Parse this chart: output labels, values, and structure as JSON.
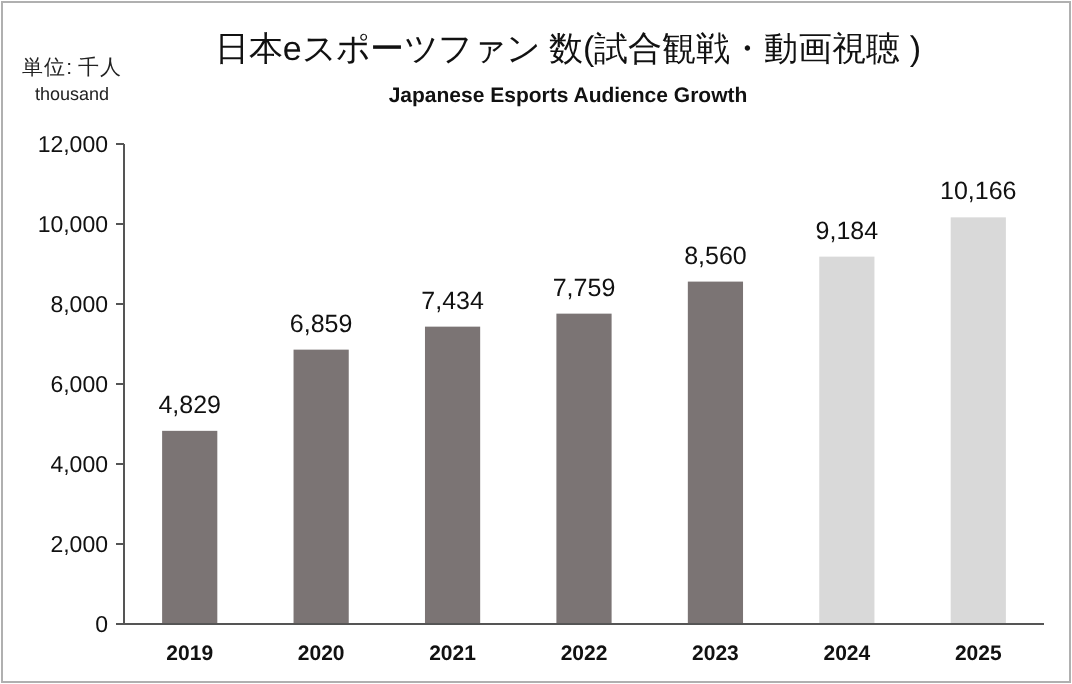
{
  "chart_data": {
    "type": "bar",
    "title": "日本eスポーツファン 数(試合観戦・動画視聴 )",
    "subtitle": "Japanese Esports Audience Growth",
    "ylabel": "単位: 千人",
    "annotations": [
      "thousand"
    ],
    "categories": [
      "2019",
      "2020",
      "2021",
      "2022",
      "2023",
      "2024",
      "2025"
    ],
    "values": [
      4829,
      6859,
      7434,
      7759,
      8560,
      9184,
      10166
    ],
    "colors": [
      "#7b7474",
      "#7b7474",
      "#7b7474",
      "#7b7474",
      "#7b7474",
      "#d9d9d9",
      "#d9d9d9"
    ],
    "ylim": [
      0,
      12000
    ],
    "yticks": [
      {
        "value": 0,
        "label": "0"
      },
      {
        "value": 2000,
        "label": "2,000"
      },
      {
        "value": 4000,
        "label": "4,000"
      },
      {
        "value": 6000,
        "label": "6,000"
      },
      {
        "value": 8000,
        "label": "8,000"
      },
      {
        "value": 10000,
        "label": "10,000"
      },
      {
        "value": 12000,
        "label": "12,000"
      }
    ],
    "value_labels": [
      "4,829",
      "6,859",
      "7,434",
      "7,759",
      "8,560",
      "9,184",
      "10,166"
    ],
    "grid": false
  }
}
